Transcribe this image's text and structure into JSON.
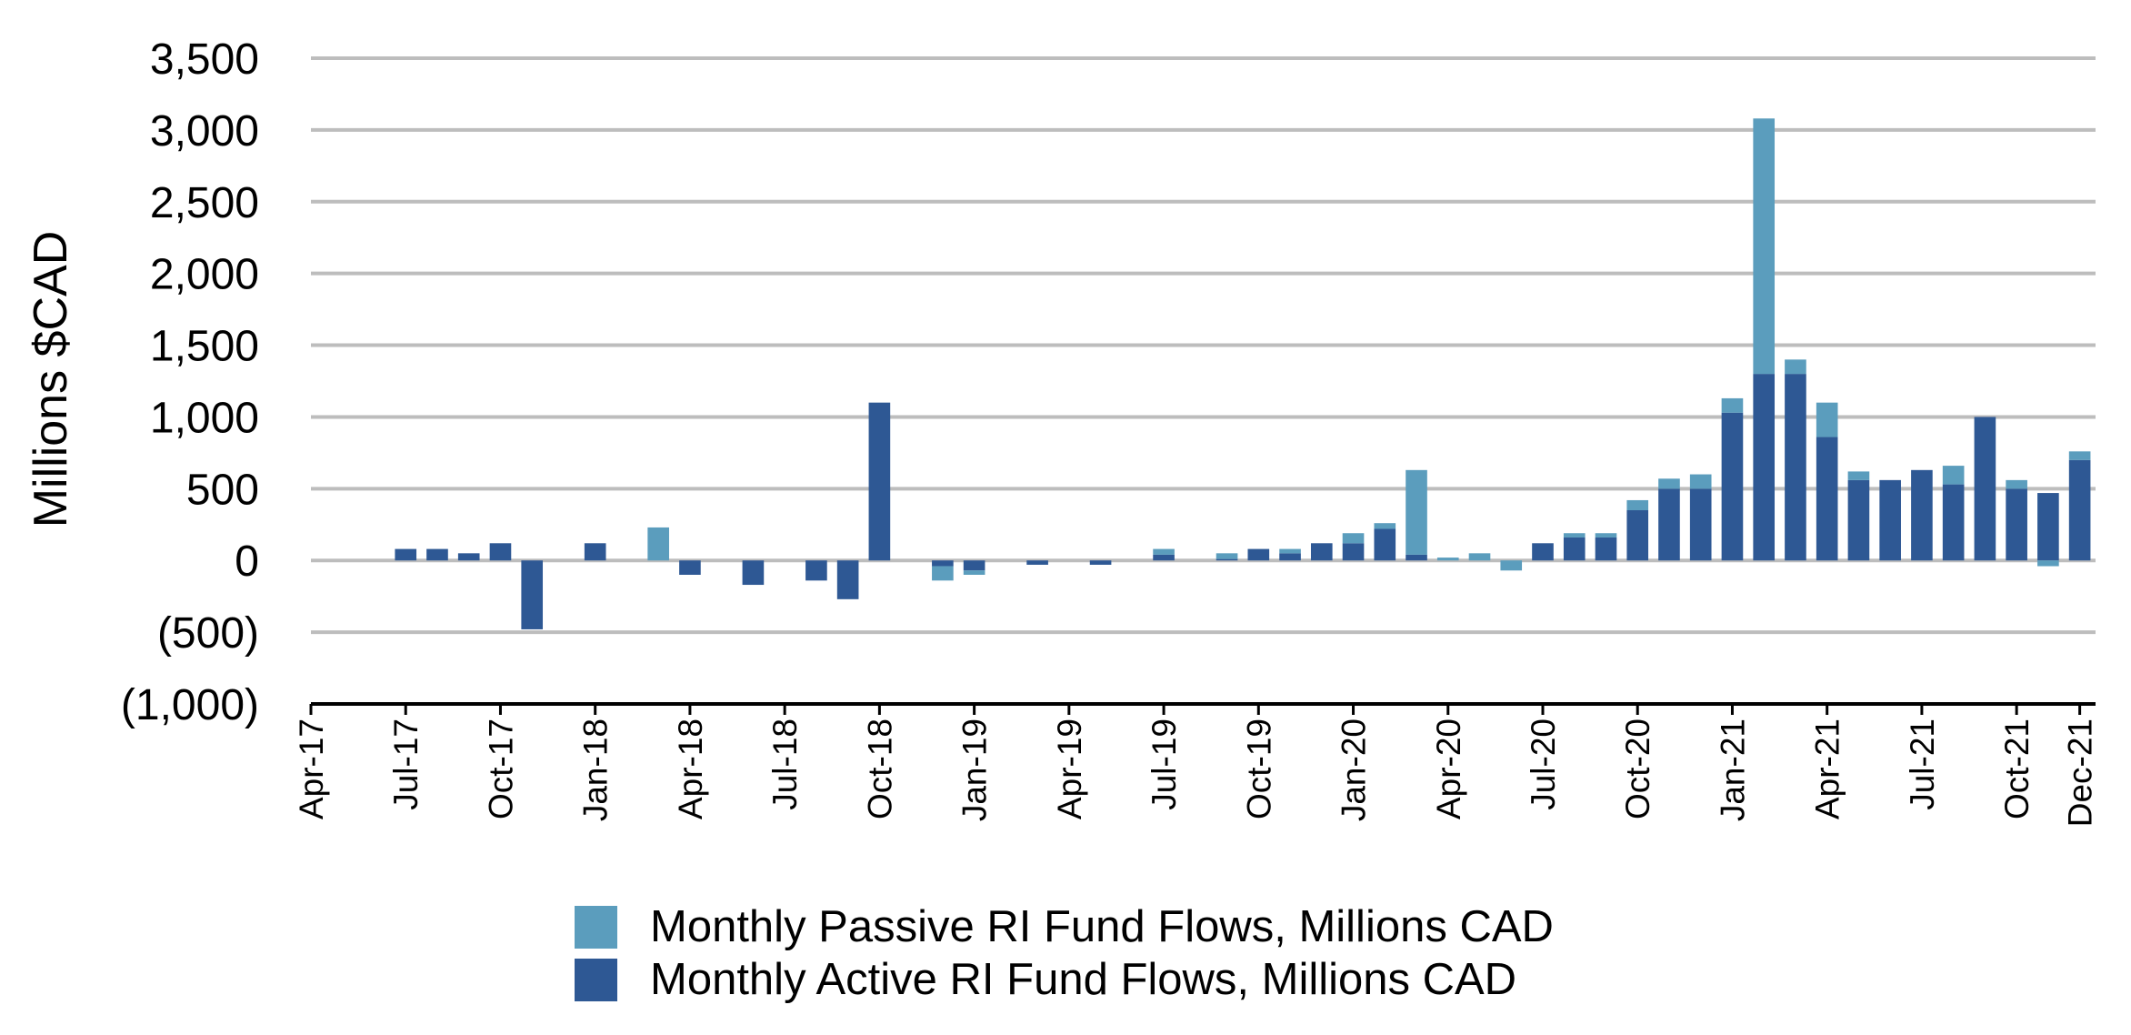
{
  "chart_data": {
    "type": "bar",
    "stacked": true,
    "title": "",
    "ylabel": "Millions $CAD",
    "xlabel": "",
    "ylim": [
      -1000,
      3500
    ],
    "yticks": [
      3500,
      3000,
      2500,
      2000,
      1500,
      1000,
      500,
      0,
      -500,
      -1000
    ],
    "ytick_labels": [
      "3,500",
      "3,000",
      "2,500",
      "2,000",
      "1,500",
      "1,000",
      "500",
      "0",
      "(500)",
      "(1,000)"
    ],
    "grid": true,
    "legend_position": "bottom",
    "x_start": "Apr-17",
    "xtick_labels": [
      "Apr-17",
      "Jul-17",
      "Oct-17",
      "Jan-18",
      "Apr-18",
      "Jul-18",
      "Oct-18",
      "Jan-19",
      "Apr-19",
      "Jul-19",
      "Oct-19",
      "Jan-20",
      "Apr-20",
      "Jul-20",
      "Oct-20",
      "Jan-21",
      "Apr-21",
      "Jul-21",
      "Oct-21",
      "Dec-21"
    ],
    "categories": [
      "Apr-17",
      "May-17",
      "Jun-17",
      "Jul-17",
      "Aug-17",
      "Sep-17",
      "Oct-17",
      "Nov-17",
      "Dec-17",
      "Jan-18",
      "Feb-18",
      "Mar-18",
      "Apr-18",
      "May-18",
      "Jun-18",
      "Jul-18",
      "Aug-18",
      "Sep-18",
      "Oct-18",
      "Nov-18",
      "Dec-18",
      "Jan-19",
      "Feb-19",
      "Mar-19",
      "Apr-19",
      "May-19",
      "Jun-19",
      "Jul-19",
      "Aug-19",
      "Sep-19",
      "Oct-19",
      "Nov-19",
      "Dec-19",
      "Jan-20",
      "Feb-20",
      "Mar-20",
      "Apr-20",
      "May-20",
      "Jun-20",
      "Jul-20",
      "Aug-20",
      "Sep-20",
      "Oct-20",
      "Nov-20",
      "Dec-20",
      "Jan-21",
      "Feb-21",
      "Mar-21",
      "Apr-21",
      "May-21",
      "Jun-21",
      "Jul-21",
      "Aug-21",
      "Sep-21",
      "Oct-21",
      "Nov-21",
      "Dec-21"
    ],
    "series": [
      {
        "name": "Monthly Active RI Fund Flows, Millions CAD",
        "color": "#2e5894",
        "values": [
          0,
          0,
          0,
          80,
          80,
          50,
          120,
          -480,
          0,
          120,
          0,
          0,
          -100,
          0,
          -170,
          0,
          -140,
          -270,
          1100,
          0,
          -40,
          -70,
          0,
          -30,
          0,
          -30,
          0,
          40,
          0,
          10,
          80,
          50,
          120,
          120,
          220,
          40,
          0,
          0,
          0,
          120,
          160,
          160,
          350,
          500,
          500,
          1030,
          1300,
          1300,
          860,
          560,
          560,
          630,
          530,
          1000,
          500,
          470,
          700
        ]
      },
      {
        "name": "Monthly Passive RI Fund Flows, Millions CAD",
        "color": "#5b9dbd",
        "values": [
          0,
          0,
          0,
          0,
          0,
          0,
          0,
          0,
          0,
          0,
          0,
          230,
          0,
          0,
          0,
          0,
          0,
          0,
          0,
          0,
          -100,
          -30,
          0,
          0,
          0,
          0,
          0,
          40,
          0,
          40,
          0,
          30,
          0,
          70,
          40,
          590,
          20,
          50,
          -70,
          0,
          30,
          30,
          70,
          70,
          100,
          100,
          1780,
          100,
          240,
          60,
          0,
          0,
          130,
          0,
          60,
          -40,
          60
        ]
      }
    ]
  },
  "legend": {
    "items": [
      {
        "label": "Monthly Passive RI Fund Flows, Millions CAD",
        "color": "#5b9dbd"
      },
      {
        "label": "Monthly Active RI Fund Flows, Millions CAD",
        "color": "#2e5894"
      }
    ]
  }
}
